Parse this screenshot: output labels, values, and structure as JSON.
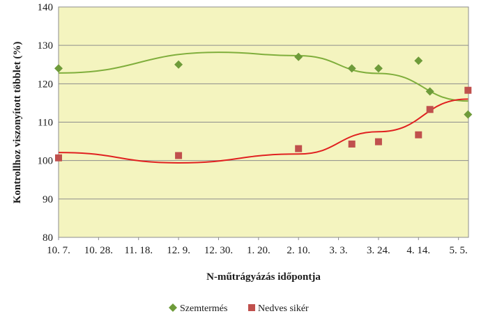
{
  "chart_data": {
    "type": "scatter",
    "xlabel": "N-műtrágyázás időpontja",
    "ylabel": "Kontrollhoz viszonyított többlet (%)",
    "x_tick_labels": [
      "10. 7.",
      "10. 28.",
      "11. 18.",
      "12. 9.",
      "12. 30.",
      "1. 20.",
      "2. 10.",
      "3. 3.",
      "3. 24.",
      "4. 14.",
      "5. 5."
    ],
    "ylim": [
      80,
      140
    ],
    "y_ticks": [
      "80",
      "90",
      "100",
      "110",
      "120",
      "130",
      "140"
    ],
    "grid": "horizontal",
    "legend_position": "bottom",
    "series": [
      {
        "name": "Szemtermés",
        "marker": "diamond",
        "color": "#6e9b3a",
        "trend_color": "#7fae3c",
        "points": [
          {
            "x": "10. 7.",
            "y": 124
          },
          {
            "x": "12. 9.",
            "y": 125
          },
          {
            "x": "2. 10.",
            "y": 127
          },
          {
            "x": "3. 10.",
            "y": 124
          },
          {
            "x": "3. 24.",
            "y": 124
          },
          {
            "x": "4. 14.",
            "y": 126
          },
          {
            "x": "4. 20.",
            "y": 118
          },
          {
            "x": "5. 10.",
            "y": 112
          }
        ],
        "trend": [
          {
            "x": "10. 7.",
            "y": 122.8
          },
          {
            "x": "12. 30.",
            "y": 128.2
          },
          {
            "x": "2. 10.",
            "y": 127.3
          },
          {
            "x": "3. 24.",
            "y": 122.7
          },
          {
            "x": "5. 10.",
            "y": 115.5
          }
        ]
      },
      {
        "name": "Nedves sikér",
        "marker": "square",
        "color": "#c0504d",
        "trend_color": "#e02020",
        "points": [
          {
            "x": "10. 7.",
            "y": 100.7
          },
          {
            "x": "12. 9.",
            "y": 101.3
          },
          {
            "x": "2. 10.",
            "y": 103.1
          },
          {
            "x": "3. 10.",
            "y": 104.3
          },
          {
            "x": "3. 24.",
            "y": 104.9
          },
          {
            "x": "4. 14.",
            "y": 106.7
          },
          {
            "x": "4. 20.",
            "y": 113.3
          },
          {
            "x": "5. 10.",
            "y": 118.3
          }
        ],
        "trend": [
          {
            "x": "10. 7.",
            "y": 102.1
          },
          {
            "x": "12. 9.",
            "y": 99.4
          },
          {
            "x": "2. 10.",
            "y": 101.7
          },
          {
            "x": "3. 24.",
            "y": 107.5
          },
          {
            "x": "5. 10.",
            "y": 116.0
          }
        ]
      }
    ]
  }
}
